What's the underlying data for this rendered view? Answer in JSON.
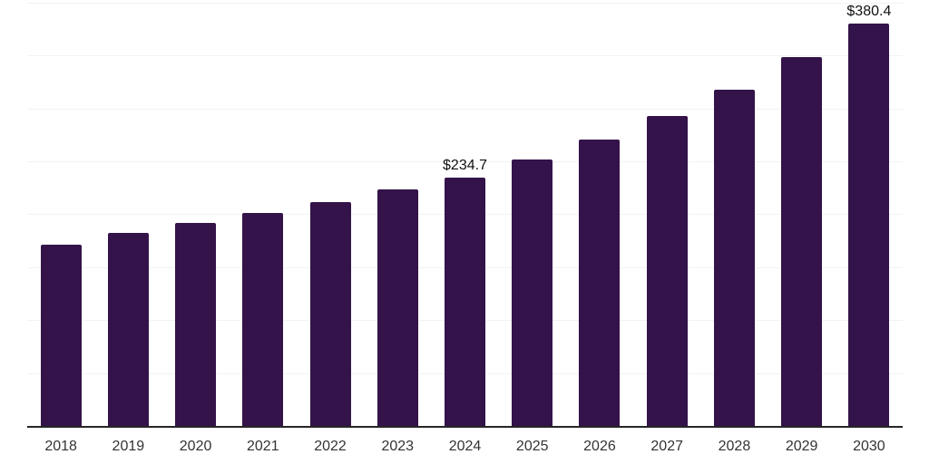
{
  "chart": {
    "background_color": "#ffffff",
    "bar_color": "#331349",
    "axis_line_color": "#262626",
    "gridline_color": "#f2f2f2",
    "data_label_color": "#111111",
    "tick_label_color": "#333333"
  },
  "chart_data": {
    "type": "bar",
    "title": "",
    "xlabel": "",
    "ylabel": "",
    "categories": [
      "2018",
      "2019",
      "2020",
      "2021",
      "2022",
      "2023",
      "2024",
      "2025",
      "2026",
      "2027",
      "2028",
      "2029",
      "2030"
    ],
    "values": [
      171.2,
      182.4,
      191.8,
      201.3,
      211.5,
      223.5,
      234.7,
      251.8,
      270.6,
      292.9,
      317.7,
      348.5,
      380.4
    ],
    "data_labels": [
      "",
      "",
      "",
      "",
      "",
      "",
      "$234.7",
      "",
      "",
      "",
      "",
      "",
      "$380.4"
    ],
    "ylim": [
      0,
      400
    ],
    "grid_step": 50,
    "grid": "horizontal",
    "y_axis_labels_shown": false,
    "legend": "none"
  }
}
